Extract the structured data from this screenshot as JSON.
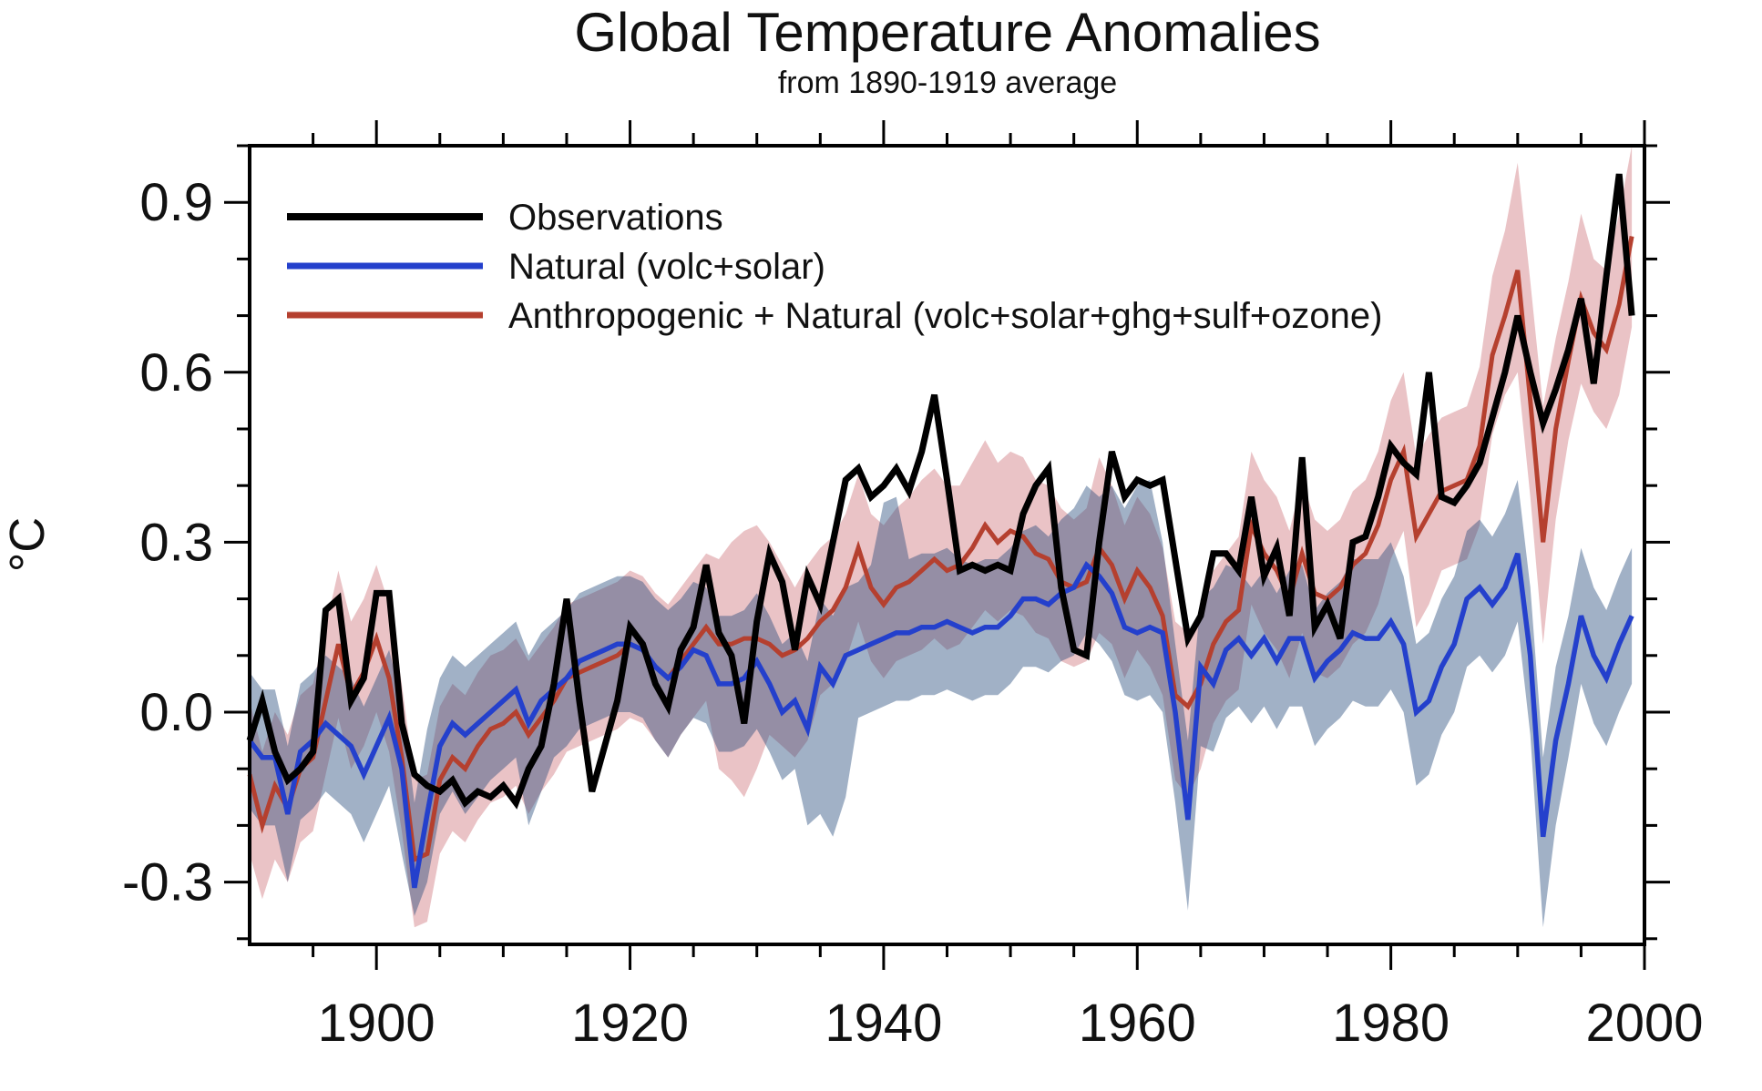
{
  "chart": {
    "title": "Global Temperature Anomalies",
    "subtitle": "from 1890-1919 average",
    "ylabel": "°C",
    "legend": {
      "labels": [
        "Observations",
        "Natural (volc+solar)",
        "Anthropogenic + Natural (volc+solar+ghg+sulf+ozone)"
      ]
    }
  },
  "chart_data": {
    "type": "line",
    "title": "Global Temperature Anomalies",
    "subtitle": "from 1890-1919 average",
    "xlabel": "",
    "ylabel": "°C",
    "xlim": [
      1890,
      2000
    ],
    "ylim": [
      -0.41,
      1.0
    ],
    "grid": false,
    "legend_position": "top-left",
    "x_axis": {
      "major_ticks": [
        1900,
        1920,
        1940,
        1960,
        1980,
        2000
      ],
      "major_tick_labels": [
        "1900",
        "1920",
        "1940",
        "1960",
        "1980",
        "2000"
      ],
      "minor_tick_step": 5
    },
    "y_axis": {
      "major_ticks": [
        -0.3,
        0.0,
        0.3,
        0.6,
        0.9
      ],
      "major_tick_labels": [
        "-0.3",
        "0.0",
        "0.3",
        "0.6",
        "0.9"
      ],
      "minor_tick_step": 0.1
    },
    "start_year": 1890,
    "end_year": 1999,
    "series": [
      {
        "name": "Observations",
        "color": "#000000",
        "line_width": 7,
        "values": [
          -0.05,
          0.02,
          -0.07,
          -0.12,
          -0.1,
          -0.07,
          0.18,
          0.2,
          0.02,
          0.06,
          0.21,
          0.21,
          -0.02,
          -0.11,
          -0.13,
          -0.14,
          -0.12,
          -0.16,
          -0.14,
          -0.15,
          -0.13,
          -0.16,
          -0.1,
          -0.06,
          0.05,
          0.2,
          0.02,
          -0.14,
          -0.06,
          0.02,
          0.15,
          0.12,
          0.05,
          0.01,
          0.11,
          0.15,
          0.26,
          0.14,
          0.1,
          -0.02,
          0.16,
          0.28,
          0.23,
          0.11,
          0.24,
          0.19,
          0.3,
          0.41,
          0.43,
          0.38,
          0.4,
          0.43,
          0.39,
          0.46,
          0.56,
          0.41,
          0.25,
          0.26,
          0.25,
          0.26,
          0.25,
          0.35,
          0.4,
          0.43,
          0.22,
          0.11,
          0.1,
          0.3,
          0.46,
          0.38,
          0.41,
          0.4,
          0.41,
          0.27,
          0.13,
          0.17,
          0.28,
          0.28,
          0.25,
          0.38,
          0.24,
          0.29,
          0.17,
          0.45,
          0.15,
          0.19,
          0.13,
          0.3,
          0.31,
          0.38,
          0.47,
          0.44,
          0.42,
          0.6,
          0.38,
          0.37,
          0.4,
          0.44,
          0.52,
          0.6,
          0.7,
          0.6,
          0.51,
          0.57,
          0.64,
          0.73,
          0.58,
          0.77,
          0.95,
          0.7
        ]
      },
      {
        "name": "Natural (volc+solar)",
        "color": "#2440cc",
        "line_width": 5.5,
        "band_color": "rgba(30,70,120,0.42)",
        "values": [
          -0.05,
          -0.08,
          -0.08,
          -0.18,
          -0.07,
          -0.05,
          -0.02,
          -0.04,
          -0.06,
          -0.11,
          -0.06,
          -0.01,
          -0.1,
          -0.31,
          -0.18,
          -0.06,
          -0.02,
          -0.04,
          -0.02,
          0.0,
          0.02,
          0.04,
          -0.02,
          0.02,
          0.04,
          0.06,
          0.09,
          0.1,
          0.11,
          0.12,
          0.12,
          0.11,
          0.08,
          0.06,
          0.08,
          0.11,
          0.1,
          0.05,
          0.05,
          0.06,
          0.09,
          0.05,
          0.0,
          0.02,
          -0.03,
          0.08,
          0.05,
          0.1,
          0.11,
          0.12,
          0.13,
          0.14,
          0.14,
          0.15,
          0.15,
          0.16,
          0.15,
          0.14,
          0.15,
          0.15,
          0.17,
          0.2,
          0.2,
          0.19,
          0.21,
          0.22,
          0.26,
          0.24,
          0.21,
          0.15,
          0.14,
          0.15,
          0.14,
          0.0,
          -0.19,
          0.08,
          0.05,
          0.11,
          0.13,
          0.1,
          0.13,
          0.09,
          0.13,
          0.13,
          0.06,
          0.09,
          0.11,
          0.14,
          0.13,
          0.13,
          0.16,
          0.12,
          0.0,
          0.02,
          0.08,
          0.12,
          0.2,
          0.22,
          0.19,
          0.22,
          0.28,
          0.1,
          -0.22,
          -0.05,
          0.05,
          0.17,
          0.1,
          0.06,
          0.12,
          0.17
        ],
        "band_upper": [
          0.07,
          0.04,
          0.04,
          -0.06,
          0.05,
          0.07,
          0.1,
          0.08,
          0.06,
          0.01,
          0.06,
          0.11,
          0.02,
          -0.16,
          -0.03,
          0.06,
          0.1,
          0.08,
          0.1,
          0.12,
          0.14,
          0.16,
          0.1,
          0.14,
          0.16,
          0.18,
          0.21,
          0.22,
          0.23,
          0.24,
          0.24,
          0.23,
          0.2,
          0.18,
          0.2,
          0.23,
          0.22,
          0.17,
          0.17,
          0.18,
          0.21,
          0.17,
          0.12,
          0.14,
          0.09,
          0.2,
          0.17,
          0.22,
          0.23,
          0.26,
          0.37,
          0.38,
          0.27,
          0.28,
          0.28,
          0.29,
          0.27,
          0.26,
          0.27,
          0.27,
          0.29,
          0.32,
          0.33,
          0.31,
          0.34,
          0.36,
          0.4,
          0.38,
          0.4,
          0.36,
          0.4,
          0.41,
          0.3,
          0.12,
          -0.05,
          0.2,
          0.22,
          0.26,
          0.25,
          0.22,
          0.25,
          0.21,
          0.25,
          0.26,
          0.18,
          0.21,
          0.23,
          0.27,
          0.27,
          0.27,
          0.3,
          0.24,
          0.12,
          0.14,
          0.2,
          0.24,
          0.32,
          0.34,
          0.31,
          0.35,
          0.41,
          0.22,
          -0.08,
          0.08,
          0.17,
          0.29,
          0.22,
          0.18,
          0.24,
          0.29
        ],
        "band_lower": [
          -0.17,
          -0.2,
          -0.2,
          -0.3,
          -0.19,
          -0.17,
          -0.14,
          -0.16,
          -0.18,
          -0.23,
          -0.18,
          -0.13,
          -0.25,
          -0.36,
          -0.3,
          -0.18,
          -0.14,
          -0.18,
          -0.15,
          -0.12,
          -0.1,
          -0.08,
          -0.2,
          -0.14,
          -0.08,
          -0.06,
          -0.03,
          -0.02,
          -0.01,
          0.0,
          0.0,
          -0.01,
          -0.05,
          -0.08,
          -0.04,
          -0.01,
          -0.02,
          -0.07,
          -0.07,
          -0.06,
          -0.03,
          -0.07,
          -0.12,
          -0.1,
          -0.2,
          -0.18,
          -0.22,
          -0.15,
          -0.01,
          0.0,
          0.01,
          0.02,
          0.02,
          0.03,
          0.03,
          0.04,
          0.03,
          0.02,
          0.03,
          0.03,
          0.05,
          0.08,
          0.08,
          0.07,
          0.09,
          0.1,
          0.14,
          0.12,
          0.09,
          0.03,
          0.02,
          0.03,
          0.0,
          -0.16,
          -0.35,
          -0.06,
          -0.07,
          -0.01,
          0.01,
          -0.02,
          0.01,
          -0.03,
          0.01,
          0.01,
          -0.06,
          -0.03,
          -0.01,
          0.02,
          0.01,
          0.01,
          0.04,
          0.0,
          -0.13,
          -0.11,
          -0.04,
          0.0,
          0.08,
          0.1,
          0.07,
          0.1,
          0.16,
          -0.04,
          -0.38,
          -0.2,
          -0.08,
          0.05,
          -0.02,
          -0.06,
          0.0,
          0.05
        ]
      },
      {
        "name": "Anthropogenic + Natural (volc+solar+ghg+sulf+ozone)",
        "color": "#b5402f",
        "line_width": 5,
        "band_color": "rgba(180,40,50,0.28)",
        "values": [
          -0.11,
          -0.2,
          -0.13,
          -0.17,
          -0.1,
          -0.08,
          0.02,
          0.12,
          0.03,
          0.07,
          0.13,
          0.06,
          -0.08,
          -0.26,
          -0.25,
          -0.12,
          -0.08,
          -0.1,
          -0.06,
          -0.03,
          -0.02,
          0.0,
          -0.04,
          -0.01,
          0.02,
          0.06,
          0.07,
          0.08,
          0.09,
          0.1,
          0.12,
          0.11,
          0.08,
          0.06,
          0.09,
          0.12,
          0.15,
          0.12,
          0.12,
          0.13,
          0.13,
          0.12,
          0.1,
          0.11,
          0.13,
          0.16,
          0.18,
          0.22,
          0.29,
          0.22,
          0.19,
          0.22,
          0.23,
          0.25,
          0.27,
          0.25,
          0.26,
          0.29,
          0.33,
          0.3,
          0.32,
          0.31,
          0.28,
          0.27,
          0.23,
          0.22,
          0.23,
          0.29,
          0.26,
          0.2,
          0.25,
          0.22,
          0.17,
          0.03,
          0.01,
          0.05,
          0.12,
          0.16,
          0.18,
          0.33,
          0.28,
          0.25,
          0.2,
          0.28,
          0.21,
          0.2,
          0.22,
          0.26,
          0.28,
          0.33,
          0.41,
          0.46,
          0.31,
          0.35,
          0.39,
          0.4,
          0.41,
          0.47,
          0.63,
          0.7,
          0.78,
          0.55,
          0.3,
          0.5,
          0.62,
          0.73,
          0.67,
          0.64,
          0.72,
          0.84
        ],
        "band_upper": [
          0.02,
          -0.07,
          0.0,
          -0.04,
          0.03,
          0.05,
          0.15,
          0.25,
          0.16,
          0.2,
          0.26,
          0.19,
          0.05,
          -0.12,
          -0.11,
          0.01,
          0.05,
          0.03,
          0.07,
          0.1,
          0.11,
          0.13,
          0.09,
          0.12,
          0.15,
          0.19,
          0.2,
          0.21,
          0.22,
          0.23,
          0.25,
          0.24,
          0.21,
          0.19,
          0.22,
          0.25,
          0.28,
          0.27,
          0.3,
          0.32,
          0.33,
          0.3,
          0.26,
          0.22,
          0.26,
          0.29,
          0.31,
          0.35,
          0.42,
          0.35,
          0.33,
          0.36,
          0.38,
          0.41,
          0.43,
          0.4,
          0.4,
          0.44,
          0.48,
          0.44,
          0.46,
          0.45,
          0.41,
          0.4,
          0.36,
          0.34,
          0.36,
          0.45,
          0.4,
          0.33,
          0.38,
          0.35,
          0.29,
          0.16,
          0.14,
          0.18,
          0.25,
          0.28,
          0.31,
          0.46,
          0.41,
          0.38,
          0.32,
          0.41,
          0.34,
          0.32,
          0.34,
          0.39,
          0.41,
          0.46,
          0.55,
          0.6,
          0.45,
          0.49,
          0.52,
          0.53,
          0.54,
          0.61,
          0.77,
          0.85,
          0.97,
          0.76,
          0.54,
          0.66,
          0.76,
          0.88,
          0.8,
          0.78,
          0.88,
          1.0
        ],
        "band_lower": [
          -0.25,
          -0.33,
          -0.26,
          -0.3,
          -0.23,
          -0.21,
          -0.11,
          -0.01,
          -0.1,
          -0.06,
          0.0,
          -0.07,
          -0.21,
          -0.38,
          -0.37,
          -0.25,
          -0.21,
          -0.23,
          -0.19,
          -0.16,
          -0.15,
          -0.13,
          -0.18,
          -0.14,
          -0.11,
          -0.07,
          -0.06,
          -0.05,
          -0.04,
          -0.03,
          -0.01,
          -0.02,
          -0.05,
          -0.08,
          -0.04,
          -0.01,
          0.02,
          -0.1,
          -0.12,
          -0.15,
          -0.1,
          -0.04,
          -0.06,
          -0.08,
          -0.05,
          0.03,
          0.05,
          0.09,
          0.16,
          0.09,
          0.06,
          0.09,
          0.1,
          0.11,
          0.13,
          0.11,
          0.12,
          0.15,
          0.18,
          0.16,
          0.18,
          0.17,
          0.14,
          0.13,
          0.09,
          0.08,
          0.09,
          0.14,
          0.12,
          0.06,
          0.11,
          0.08,
          0.03,
          -0.12,
          -0.15,
          -0.1,
          -0.02,
          0.02,
          0.04,
          0.19,
          0.14,
          0.11,
          0.06,
          0.14,
          0.07,
          0.06,
          0.08,
          0.12,
          0.14,
          0.19,
          0.27,
          0.32,
          0.15,
          0.19,
          0.25,
          0.26,
          0.27,
          0.33,
          0.49,
          0.56,
          0.6,
          0.38,
          0.12,
          0.34,
          0.48,
          0.58,
          0.53,
          0.5,
          0.56,
          0.68
        ]
      }
    ]
  }
}
